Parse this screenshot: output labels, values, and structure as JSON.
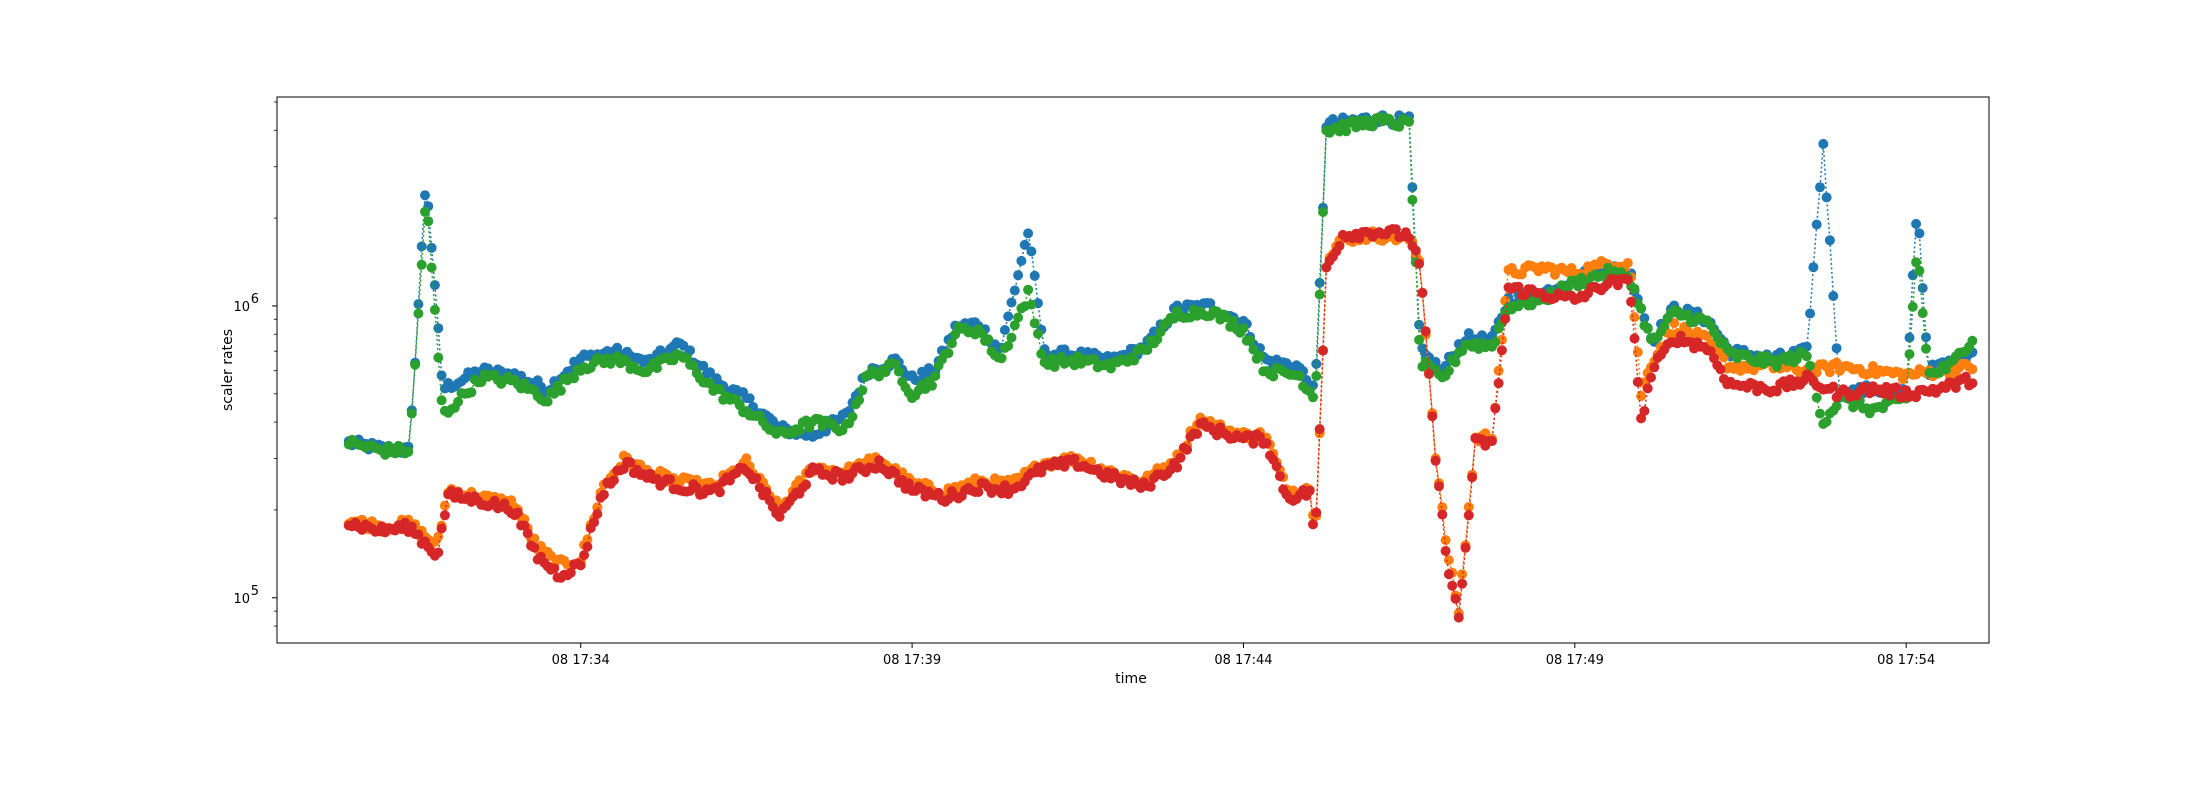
{
  "chart_data": {
    "type": "scatter",
    "xlabel": "time",
    "ylabel": "scaler rates",
    "xscale": "time",
    "yscale": "log",
    "xlim": [
      "2024-01-08T17:29:25",
      "2024-01-08T17:55:15"
    ],
    "ylim": [
      70000,
      5200000
    ],
    "xticks": [
      {
        "t": "2024-01-08T17:34:00",
        "label": "08 17:34"
      },
      {
        "t": "2024-01-08T17:39:00",
        "label": "08 17:39"
      },
      {
        "t": "2024-01-08T17:44:00",
        "label": "08 17:44"
      },
      {
        "t": "2024-01-08T17:49:00",
        "label": "08 17:49"
      },
      {
        "t": "2024-01-08T17:54:00",
        "label": "08 17:54"
      }
    ],
    "yticks": [
      {
        "value": 100000,
        "base": "10",
        "exp": "5"
      },
      {
        "value": 1000000,
        "base": "10",
        "exp": "6"
      }
    ],
    "grid": false,
    "legend": "none",
    "line_style": "dotted",
    "marker": "circle",
    "start": "2024-01-08T17:30:30",
    "end": "2024-01-08T17:55:00",
    "series": [
      {
        "color": "#1f77b4",
        "knots": [
          [
            "17:30:30",
            340000
          ],
          [
            "17:31:00",
            325000
          ],
          [
            "17:31:25",
            320000
          ],
          [
            "17:31:40",
            2800000
          ],
          [
            "17:31:55",
            520000
          ],
          [
            "17:32:30",
            600000
          ],
          [
            "17:33:00",
            580000
          ],
          [
            "17:33:30",
            520000
          ],
          [
            "17:34:00",
            660000
          ],
          [
            "17:34:30",
            700000
          ],
          [
            "17:35:00",
            640000
          ],
          [
            "17:35:30",
            740000
          ],
          [
            "17:36:00",
            560000
          ],
          [
            "17:36:30",
            480000
          ],
          [
            "17:37:00",
            380000
          ],
          [
            "17:37:30",
            360000
          ],
          [
            "17:38:00",
            420000
          ],
          [
            "17:38:20",
            600000
          ],
          [
            "17:38:45",
            650000
          ],
          [
            "17:39:00",
            560000
          ],
          [
            "17:39:20",
            600000
          ],
          [
            "17:39:40",
            850000
          ],
          [
            "17:40:00",
            870000
          ],
          [
            "17:40:20",
            700000
          ],
          [
            "17:40:45",
            1800000
          ],
          [
            "17:41:00",
            690000
          ],
          [
            "17:41:30",
            680000
          ],
          [
            "17:42:00",
            650000
          ],
          [
            "17:42:30",
            720000
          ],
          [
            "17:43:00",
            980000
          ],
          [
            "17:43:30",
            1000000
          ],
          [
            "17:44:00",
            880000
          ],
          [
            "17:44:20",
            650000
          ],
          [
            "17:44:50",
            620000
          ],
          [
            "17:45:05",
            500000
          ],
          [
            "17:45:15",
            4200000
          ],
          [
            "17:46:00",
            4400000
          ],
          [
            "17:46:30",
            4300000
          ],
          [
            "17:46:40",
            700000
          ],
          [
            "17:47:00",
            600000
          ],
          [
            "17:47:20",
            780000
          ],
          [
            "17:47:45",
            760000
          ],
          [
            "17:48:00",
            1050000
          ],
          [
            "17:48:30",
            1100000
          ],
          [
            "17:49:00",
            1250000
          ],
          [
            "17:49:30",
            1350000
          ],
          [
            "17:49:50",
            1300000
          ],
          [
            "17:50:10",
            760000
          ],
          [
            "17:50:30",
            980000
          ],
          [
            "17:51:00",
            900000
          ],
          [
            "17:51:20",
            700000
          ],
          [
            "17:52:00",
            660000
          ],
          [
            "17:52:30",
            700000
          ],
          [
            "17:52:45",
            3600000
          ],
          [
            "17:53:00",
            500000
          ],
          [
            "17:53:30",
            520000
          ],
          [
            "17:54:00",
            500000
          ],
          [
            "17:54:10",
            2300000
          ],
          [
            "17:54:20",
            600000
          ],
          [
            "17:54:40",
            640000
          ],
          [
            "17:55:00",
            700000
          ]
        ]
      },
      {
        "color": "#ff7f0e",
        "knots": [
          [
            "17:30:30",
            185000
          ],
          [
            "17:31:00",
            175000
          ],
          [
            "17:31:25",
            180000
          ],
          [
            "17:31:50",
            150000
          ],
          [
            "17:32:00",
            235000
          ],
          [
            "17:32:30",
            220000
          ],
          [
            "17:33:00",
            210000
          ],
          [
            "17:33:20",
            150000
          ],
          [
            "17:33:40",
            130000
          ],
          [
            "17:34:00",
            135000
          ],
          [
            "17:34:20",
            240000
          ],
          [
            "17:34:40",
            300000
          ],
          [
            "17:35:00",
            270000
          ],
          [
            "17:35:30",
            250000
          ],
          [
            "17:36:00",
            240000
          ],
          [
            "17:36:30",
            290000
          ],
          [
            "17:37:00",
            200000
          ],
          [
            "17:37:30",
            280000
          ],
          [
            "17:38:00",
            270000
          ],
          [
            "17:38:30",
            300000
          ],
          [
            "17:39:00",
            245000
          ],
          [
            "17:39:30",
            230000
          ],
          [
            "17:40:00",
            250000
          ],
          [
            "17:40:30",
            245000
          ],
          [
            "17:41:00",
            290000
          ],
          [
            "17:41:30",
            300000
          ],
          [
            "17:42:00",
            270000
          ],
          [
            "17:42:30",
            250000
          ],
          [
            "17:43:00",
            300000
          ],
          [
            "17:43:20",
            410000
          ],
          [
            "17:43:40",
            380000
          ],
          [
            "17:44:00",
            360000
          ],
          [
            "17:44:20",
            360000
          ],
          [
            "17:44:40",
            230000
          ],
          [
            "17:45:00",
            240000
          ],
          [
            "17:45:05",
            160000
          ],
          [
            "17:45:15",
            1400000
          ],
          [
            "17:45:30",
            1700000
          ],
          [
            "17:46:00",
            1750000
          ],
          [
            "17:46:30",
            1700000
          ],
          [
            "17:46:40",
            1400000
          ],
          [
            "17:46:55",
            280000
          ],
          [
            "17:47:05",
            140000
          ],
          [
            "17:47:15",
            90000
          ],
          [
            "17:47:30",
            350000
          ],
          [
            "17:47:45",
            360000
          ],
          [
            "17:48:00",
            1300000
          ],
          [
            "17:48:30",
            1350000
          ],
          [
            "17:49:00",
            1300000
          ],
          [
            "17:49:30",
            1400000
          ],
          [
            "17:49:50",
            1400000
          ],
          [
            "17:50:00",
            500000
          ],
          [
            "17:50:10",
            650000
          ],
          [
            "17:50:30",
            850000
          ],
          [
            "17:51:00",
            760000
          ],
          [
            "17:51:20",
            620000
          ],
          [
            "17:52:00",
            620000
          ],
          [
            "17:52:30",
            600000
          ],
          [
            "17:53:00",
            620000
          ],
          [
            "17:53:30",
            600000
          ],
          [
            "17:54:00",
            580000
          ],
          [
            "17:54:30",
            600000
          ],
          [
            "17:55:00",
            620000
          ]
        ]
      },
      {
        "color": "#2ca02c",
        "knots": [
          [
            "17:30:30",
            340000
          ],
          [
            "17:31:00",
            320000
          ],
          [
            "17:31:25",
            320000
          ],
          [
            "17:31:40",
            2400000
          ],
          [
            "17:31:55",
            420000
          ],
          [
            "17:32:30",
            570000
          ],
          [
            "17:33:00",
            550000
          ],
          [
            "17:33:30",
            480000
          ],
          [
            "17:34:00",
            620000
          ],
          [
            "17:34:30",
            660000
          ],
          [
            "17:35:00",
            600000
          ],
          [
            "17:35:30",
            680000
          ],
          [
            "17:36:00",
            520000
          ],
          [
            "17:36:30",
            440000
          ],
          [
            "17:37:00",
            360000
          ],
          [
            "17:37:30",
            400000
          ],
          [
            "17:38:00",
            380000
          ],
          [
            "17:38:20",
            580000
          ],
          [
            "17:38:45",
            620000
          ],
          [
            "17:39:00",
            500000
          ],
          [
            "17:39:20",
            560000
          ],
          [
            "17:39:40",
            820000
          ],
          [
            "17:40:00",
            830000
          ],
          [
            "17:40:20",
            650000
          ],
          [
            "17:40:45",
            1100000
          ],
          [
            "17:41:00",
            640000
          ],
          [
            "17:41:30",
            650000
          ],
          [
            "17:42:00",
            620000
          ],
          [
            "17:42:30",
            700000
          ],
          [
            "17:43:00",
            940000
          ],
          [
            "17:43:30",
            960000
          ],
          [
            "17:44:00",
            830000
          ],
          [
            "17:44:20",
            600000
          ],
          [
            "17:44:50",
            580000
          ],
          [
            "17:45:05",
            480000
          ],
          [
            "17:45:15",
            4000000
          ],
          [
            "17:46:00",
            4300000
          ],
          [
            "17:46:30",
            4200000
          ],
          [
            "17:46:40",
            640000
          ],
          [
            "17:47:00",
            560000
          ],
          [
            "17:47:20",
            740000
          ],
          [
            "17:47:45",
            730000
          ],
          [
            "17:48:00",
            1000000
          ],
          [
            "17:48:30",
            1050000
          ],
          [
            "17:49:00",
            1200000
          ],
          [
            "17:49:30",
            1300000
          ],
          [
            "17:49:50",
            1250000
          ],
          [
            "17:50:10",
            740000
          ],
          [
            "17:50:30",
            950000
          ],
          [
            "17:51:00",
            880000
          ],
          [
            "17:51:20",
            680000
          ],
          [
            "17:52:00",
            640000
          ],
          [
            "17:52:30",
            680000
          ],
          [
            "17:52:45",
            400000
          ],
          [
            "17:53:00",
            480000
          ],
          [
            "17:53:30",
            440000
          ],
          [
            "17:54:00",
            480000
          ],
          [
            "17:54:10",
            1600000
          ],
          [
            "17:54:20",
            580000
          ],
          [
            "17:54:40",
            620000
          ],
          [
            "17:55:00",
            780000
          ]
        ]
      },
      {
        "color": "#d62728",
        "knots": [
          [
            "17:30:30",
            180000
          ],
          [
            "17:31:00",
            170000
          ],
          [
            "17:31:25",
            175000
          ],
          [
            "17:31:50",
            140000
          ],
          [
            "17:32:00",
            225000
          ],
          [
            "17:32:30",
            215000
          ],
          [
            "17:33:00",
            200000
          ],
          [
            "17:33:20",
            140000
          ],
          [
            "17:33:40",
            120000
          ],
          [
            "17:34:00",
            130000
          ],
          [
            "17:34:20",
            230000
          ],
          [
            "17:34:40",
            290000
          ],
          [
            "17:35:00",
            260000
          ],
          [
            "17:35:30",
            240000
          ],
          [
            "17:36:00",
            230000
          ],
          [
            "17:36:30",
            280000
          ],
          [
            "17:37:00",
            190000
          ],
          [
            "17:37:30",
            270000
          ],
          [
            "17:38:00",
            260000
          ],
          [
            "17:38:30",
            290000
          ],
          [
            "17:39:00",
            235000
          ],
          [
            "17:39:30",
            220000
          ],
          [
            "17:40:00",
            240000
          ],
          [
            "17:40:30",
            235000
          ],
          [
            "17:41:00",
            280000
          ],
          [
            "17:41:30",
            290000
          ],
          [
            "17:42:00",
            260000
          ],
          [
            "17:42:30",
            240000
          ],
          [
            "17:43:00",
            290000
          ],
          [
            "17:43:20",
            390000
          ],
          [
            "17:43:40",
            370000
          ],
          [
            "17:44:00",
            350000
          ],
          [
            "17:44:20",
            350000
          ],
          [
            "17:44:40",
            220000
          ],
          [
            "17:45:00",
            230000
          ],
          [
            "17:45:05",
            155000
          ],
          [
            "17:45:15",
            1350000
          ],
          [
            "17:45:30",
            1750000
          ],
          [
            "17:46:00",
            1800000
          ],
          [
            "17:46:30",
            1750000
          ],
          [
            "17:46:40",
            1350000
          ],
          [
            "17:46:55",
            270000
          ],
          [
            "17:47:05",
            130000
          ],
          [
            "17:47:15",
            85000
          ],
          [
            "17:47:30",
            340000
          ],
          [
            "17:47:45",
            340000
          ],
          [
            "17:48:00",
            1150000
          ],
          [
            "17:48:30",
            1100000
          ],
          [
            "17:49:00",
            1050000
          ],
          [
            "17:49:30",
            1200000
          ],
          [
            "17:49:50",
            1200000
          ],
          [
            "17:50:00",
            400000
          ],
          [
            "17:50:10",
            600000
          ],
          [
            "17:50:30",
            780000
          ],
          [
            "17:51:00",
            720000
          ],
          [
            "17:51:20",
            540000
          ],
          [
            "17:52:00",
            520000
          ],
          [
            "17:52:30",
            560000
          ],
          [
            "17:53:00",
            500000
          ],
          [
            "17:53:30",
            520000
          ],
          [
            "17:54:00",
            500000
          ],
          [
            "17:54:30",
            520000
          ],
          [
            "17:55:00",
            560000
          ]
        ]
      }
    ]
  }
}
